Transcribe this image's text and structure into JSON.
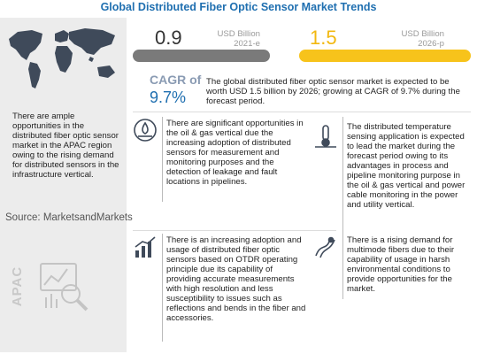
{
  "title": "Global Distributed Fiber Optic Sensor Market Trends",
  "market_2021": {
    "value": "0.9",
    "unit": "USD Billion",
    "year": "2021-e"
  },
  "market_2026": {
    "value": "1.5",
    "unit": "USD Billion",
    "year": "2026-p"
  },
  "cagr": {
    "label": "CAGR of",
    "value": "9.7%"
  },
  "summary": "The global distributed fiber optic sensor market is expected to be worth USD 1.5 billion by 2026; growing at CAGR of 9.7% during the forecast period.",
  "apac_note": "There are ample opportunities in the distributed fiber optic sensor market in the APAC region owing to the rising demand for distributed sensors in the infrastructure vertical.",
  "source": "Source: MarketsandMarkets",
  "apac_label": "APAC",
  "cards": {
    "oil_gas": "There are significant opportunities in the oil & gas vertical due the increasing adoption of distributed sensors for measurement and monitoring purposes and the detection of leakage and fault locations in pipelines.",
    "temperature": "The distributed temperature sensing application is expected to lead the market during the forecast period owing to its advantages in process and pipeline monitoring purpose in the oil & gas vertical and power cable monitoring in the power and utility vertical.",
    "otdr": "There is an increasing adoption and usage of distributed fiber optic sensors based on OTDR operating principle due its capability of providing accurate measurements with high resolution and less susceptibility to issues such as reflections and bends in the fiber and accessories.",
    "multimode": "There is a rising demand for multimode fibers due to their capability of usage in harsh environmental conditions to provide opportunities for the market."
  },
  "colors": {
    "title": "#1f6fb0",
    "bar_2021": "#7a7a7a",
    "bar_2026": "#f7c31b",
    "cagr": "#1f6fb0"
  },
  "icons": [
    "world-map-icon",
    "oil-pipeline-icon",
    "thermometer-pipe-icon",
    "growth-chart-icon",
    "fiber-cable-icon",
    "magnifier-chart-icon"
  ]
}
